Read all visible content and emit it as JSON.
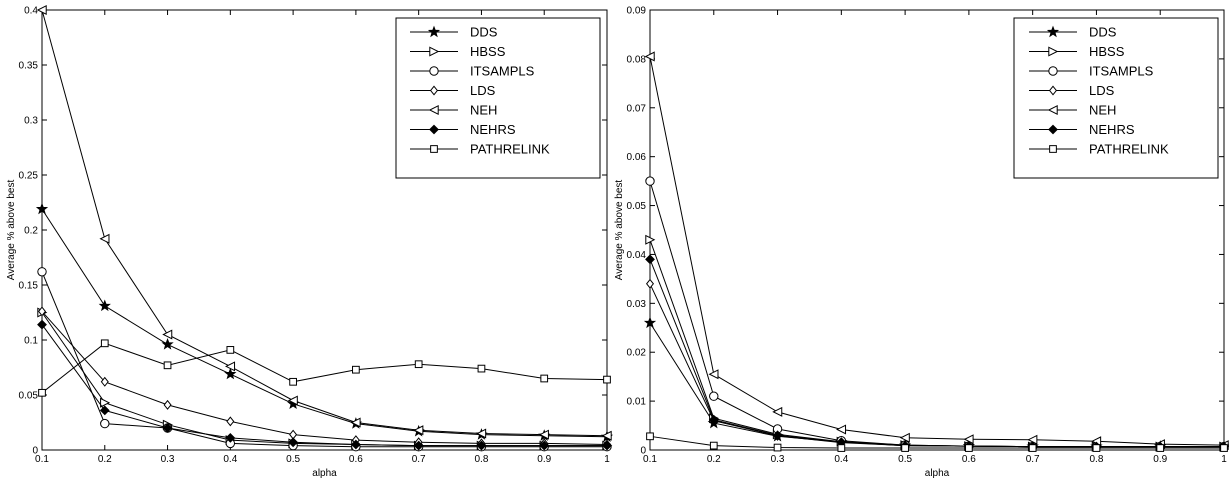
{
  "chart_data": [
    {
      "type": "line",
      "xlabel": "alpha",
      "ylabel": "Average % above best",
      "xlim": [
        0.1,
        1
      ],
      "ylim": [
        0,
        0.4
      ],
      "x_ticks": [
        0.1,
        0.2,
        0.3,
        0.4,
        0.5,
        0.6,
        0.7,
        0.8,
        0.9,
        1
      ],
      "x_tick_labels": [
        "0.1",
        "0.2",
        "0.3",
        "0.4",
        "0.5",
        "0.6",
        "0.7",
        "0.8",
        "0.9",
        "1"
      ],
      "y_ticks": [
        0,
        0.05,
        0.1,
        0.15,
        0.2,
        0.25,
        0.3,
        0.35,
        0.4
      ],
      "y_tick_labels": [
        "0",
        "0.05",
        "0.1",
        "0.15",
        "0.2",
        "0.25",
        "0.3",
        "0.35",
        "0.4"
      ],
      "grid": false,
      "legend_position": "top-right",
      "x": [
        0.1,
        0.2,
        0.3,
        0.4,
        0.5,
        0.6,
        0.7,
        0.8,
        0.9,
        1
      ],
      "series": [
        {
          "name": "DDS",
          "marker": "star",
          "values": [
            0.219,
            0.131,
            0.096,
            0.069,
            0.042,
            0.024,
            0.017,
            0.014,
            0.013,
            0.012
          ]
        },
        {
          "name": "HBSS",
          "marker": "triangle-right",
          "values": [
            0.125,
            0.043,
            0.023,
            0.009,
            0.006,
            0.005,
            0.004,
            0.004,
            0.004,
            0.004
          ]
        },
        {
          "name": "ITSAMPLS",
          "marker": "circle",
          "values": [
            0.162,
            0.024,
            0.02,
            0.006,
            0.004,
            0.003,
            0.003,
            0.003,
            0.003,
            0.003
          ]
        },
        {
          "name": "LDS",
          "marker": "diamond",
          "values": [
            0.126,
            0.062,
            0.041,
            0.026,
            0.014,
            0.009,
            0.007,
            0.006,
            0.006,
            0.005
          ]
        },
        {
          "name": "NEH",
          "marker": "triangle-left",
          "values": [
            0.4,
            0.192,
            0.105,
            0.076,
            0.045,
            0.025,
            0.018,
            0.015,
            0.014,
            0.013
          ]
        },
        {
          "name": "NEHRS",
          "marker": "filled-diamond",
          "values": [
            0.114,
            0.036,
            0.02,
            0.011,
            0.007,
            0.005,
            0.004,
            0.004,
            0.004,
            0.004
          ]
        },
        {
          "name": "PATHRELINK",
          "marker": "square",
          "values": [
            0.052,
            0.097,
            0.077,
            0.091,
            0.062,
            0.073,
            0.078,
            0.074,
            0.065,
            0.064
          ]
        }
      ]
    },
    {
      "type": "line",
      "xlabel": "alpha",
      "ylabel": "Average % above best",
      "xlim": [
        0.1,
        1
      ],
      "ylim": [
        0,
        0.09
      ],
      "x_ticks": [
        0.1,
        0.2,
        0.3,
        0.4,
        0.5,
        0.6,
        0.7,
        0.8,
        0.9,
        1
      ],
      "x_tick_labels": [
        "0.1",
        "0.2",
        "0.3",
        "0.4",
        "0.5",
        "0.6",
        "0.7",
        "0.8",
        "0.9",
        "1"
      ],
      "y_ticks": [
        0,
        0.01,
        0.02,
        0.03,
        0.04,
        0.05,
        0.06,
        0.07,
        0.08,
        0.09
      ],
      "y_tick_labels": [
        "0",
        "0.01",
        "0.02",
        "0.03",
        "0.04",
        "0.05",
        "0.06",
        "0.07",
        "0.08",
        "0.09"
      ],
      "grid": false,
      "legend_position": "top-right",
      "x": [
        0.1,
        0.2,
        0.3,
        0.4,
        0.5,
        0.6,
        0.7,
        0.8,
        0.9,
        1
      ],
      "series": [
        {
          "name": "DDS",
          "marker": "star",
          "values": [
            0.026,
            0.0055,
            0.0028,
            0.0016,
            0.0009,
            0.0008,
            0.0007,
            0.0007,
            0.0007,
            0.0007
          ]
        },
        {
          "name": "HBSS",
          "marker": "triangle-right",
          "values": [
            0.043,
            0.0065,
            0.0032,
            0.0017,
            0.001,
            0.0008,
            0.0007,
            0.0007,
            0.0007,
            0.0007
          ]
        },
        {
          "name": "ITSAMPLS",
          "marker": "circle",
          "values": [
            0.055,
            0.011,
            0.0043,
            0.0019,
            0.001,
            0.0008,
            0.0007,
            0.0007,
            0.0007,
            0.0007
          ]
        },
        {
          "name": "LDS",
          "marker": "diamond",
          "values": [
            0.034,
            0.006,
            0.0029,
            0.0015,
            0.0009,
            0.0008,
            0.0007,
            0.0007,
            0.0007,
            0.0007
          ]
        },
        {
          "name": "NEH",
          "marker": "triangle-left",
          "values": [
            0.0805,
            0.0155,
            0.0078,
            0.0042,
            0.0025,
            0.0022,
            0.0021,
            0.0018,
            0.0012,
            0.001
          ]
        },
        {
          "name": "NEHRS",
          "marker": "filled-diamond",
          "values": [
            0.039,
            0.0062,
            0.003,
            0.0016,
            0.0009,
            0.0008,
            0.0007,
            0.0007,
            0.0007,
            0.0007
          ]
        },
        {
          "name": "PATHRELINK",
          "marker": "square",
          "values": [
            0.0028,
            0.0009,
            0.0005,
            0.0004,
            0.0004,
            0.0004,
            0.0004,
            0.0004,
            0.0004,
            0.0004
          ]
        }
      ]
    }
  ]
}
